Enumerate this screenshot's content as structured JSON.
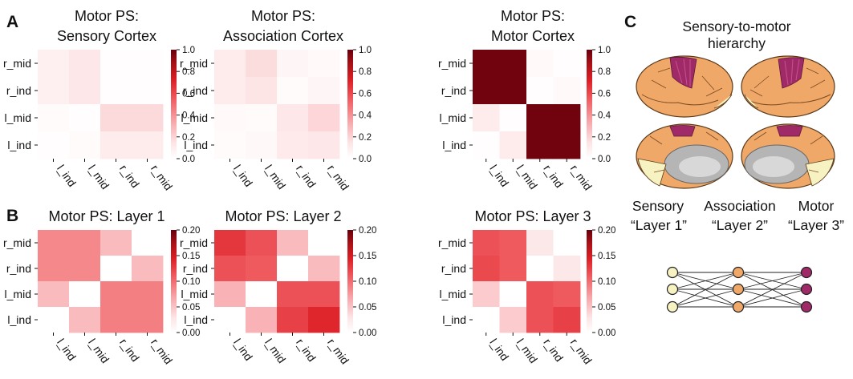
{
  "panels": {
    "A": "A",
    "B": "B",
    "C": "C"
  },
  "colormap": [
    "#ffffff",
    "#fde3e4",
    "#f7a3a6",
    "#ef5a5f",
    "#dd1f26",
    "#a50f15",
    "#67000d"
  ],
  "chart_data": [
    {
      "type": "heatmap",
      "title_lines": [
        "Motor PS:",
        "Sensory Cortex"
      ],
      "row_labels": [
        "r_mid",
        "r_ind",
        "l_mid",
        "l_ind"
      ],
      "col_labels": [
        "l_ind",
        "l_mid",
        "r_ind",
        "r_mid"
      ],
      "values": [
        [
          0.08,
          0.13,
          0.01,
          0.01
        ],
        [
          0.08,
          0.13,
          0.01,
          0.01
        ],
        [
          0.02,
          0.01,
          0.18,
          0.18
        ],
        [
          0.01,
          0.02,
          0.1,
          0.1
        ]
      ],
      "vmin": 0,
      "vmax": 1.0,
      "colorbar_ticks": [
        "0.0",
        "0.2",
        "0.4",
        "0.6",
        "0.8",
        "1.0"
      ]
    },
    {
      "type": "heatmap",
      "title_lines": [
        "Motor PS:",
        "Association Cortex"
      ],
      "row_labels": [
        "r_mid",
        "r_ind",
        "l_mid",
        "l_ind"
      ],
      "col_labels": [
        "l_ind",
        "l_mid",
        "r_ind",
        "r_mid"
      ],
      "values": [
        [
          0.1,
          0.17,
          0.05,
          0.03
        ],
        [
          0.1,
          0.14,
          0.02,
          0.05
        ],
        [
          0.03,
          0.02,
          0.13,
          0.19
        ],
        [
          0.02,
          0.04,
          0.11,
          0.13
        ]
      ],
      "vmin": 0,
      "vmax": 1.0,
      "colorbar_ticks": [
        "0.0",
        "0.2",
        "0.4",
        "0.6",
        "0.8",
        "1.0"
      ]
    },
    {
      "type": "heatmap",
      "title_lines": [
        "Motor PS:",
        "Motor Cortex"
      ],
      "row_labels": [
        "r_mid",
        "r_ind",
        "l_mid",
        "l_ind"
      ],
      "col_labels": [
        "l_ind",
        "l_mid",
        "r_ind",
        "r_mid"
      ],
      "values": [
        [
          0.98,
          0.98,
          0.03,
          0.01
        ],
        [
          0.98,
          0.98,
          0.01,
          0.03
        ],
        [
          0.1,
          0.01,
          0.98,
          0.98
        ],
        [
          0.01,
          0.1,
          0.98,
          0.98
        ]
      ],
      "vmin": 0,
      "vmax": 1.0,
      "colorbar_ticks": [
        "0.0",
        "0.2",
        "0.4",
        "0.6",
        "0.8",
        "1.0"
      ]
    },
    {
      "type": "heatmap",
      "title_lines": [
        "Motor PS: Layer 1"
      ],
      "row_labels": [
        "r_mid",
        "r_ind",
        "l_mid",
        "l_ind"
      ],
      "col_labels": [
        "l_ind",
        "l_mid",
        "r_ind",
        "r_mid"
      ],
      "values": [
        [
          0.085,
          0.085,
          0.055,
          0.0
        ],
        [
          0.085,
          0.085,
          0.0,
          0.055
        ],
        [
          0.055,
          0.0,
          0.09,
          0.09
        ],
        [
          0.0,
          0.055,
          0.09,
          0.09
        ]
      ],
      "vmin": 0,
      "vmax": 0.2,
      "colorbar_ticks": [
        "0.00",
        "0.05",
        "0.10",
        "0.15",
        "0.20"
      ]
    },
    {
      "type": "heatmap",
      "title_lines": [
        "Motor PS: Layer 2"
      ],
      "row_labels": [
        "r_mid",
        "r_ind",
        "l_mid",
        "l_ind"
      ],
      "col_labels": [
        "l_ind",
        "l_mid",
        "r_ind",
        "r_mid"
      ],
      "values": [
        [
          0.13,
          0.115,
          0.055,
          0.0
        ],
        [
          0.115,
          0.11,
          0.0,
          0.055
        ],
        [
          0.06,
          0.0,
          0.115,
          0.115
        ],
        [
          0.0,
          0.06,
          0.125,
          0.14
        ]
      ],
      "vmin": 0,
      "vmax": 0.2,
      "colorbar_ticks": [
        "0.00",
        "0.05",
        "0.10",
        "0.15",
        "0.20"
      ]
    },
    {
      "type": "heatmap",
      "title_lines": [
        "Motor PS: Layer 3"
      ],
      "row_labels": [
        "r_mid",
        "r_ind",
        "l_mid",
        "l_ind"
      ],
      "col_labels": [
        "l_ind",
        "l_mid",
        "r_ind",
        "r_mid"
      ],
      "values": [
        [
          0.115,
          0.11,
          0.025,
          0.0
        ],
        [
          0.12,
          0.11,
          0.0,
          0.025
        ],
        [
          0.045,
          0.0,
          0.115,
          0.11
        ],
        [
          0.0,
          0.045,
          0.115,
          0.125
        ]
      ],
      "vmin": 0,
      "vmax": 0.2,
      "colorbar_ticks": [
        "0.00",
        "0.05",
        "0.10",
        "0.15",
        "0.20"
      ]
    }
  ],
  "panel_c": {
    "title_lines": [
      "Sensory-to-motor",
      "hierarchy"
    ],
    "column_names": [
      "Sensory",
      "Association",
      "Motor"
    ],
    "layer_names": [
      "“Layer 1”",
      "“Layer 2”",
      "“Layer 3”"
    ],
    "colors": {
      "sensory": "#f7f2c2",
      "association": "#f0a868",
      "motor": "#a02a68",
      "medial_wall": "#c8c8c8"
    },
    "network": {
      "nodes_per_layer": 3
    }
  }
}
